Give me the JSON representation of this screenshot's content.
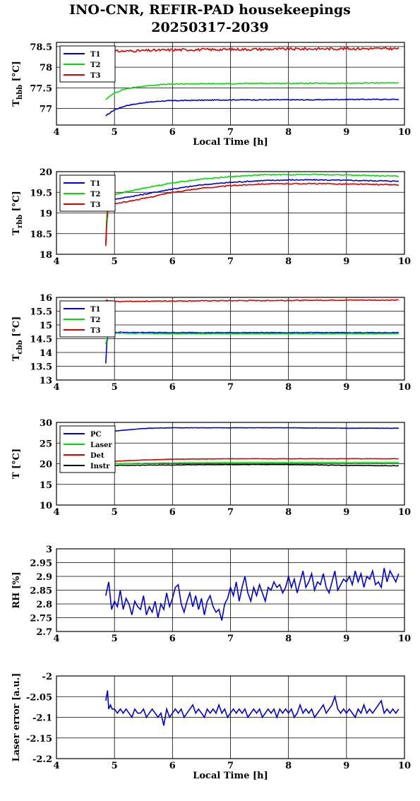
{
  "title": "INO-CNR, REFIR-PAD housekeepings",
  "subtitle": "20250317-2039",
  "chart_data": [
    {
      "type": "line",
      "title": "",
      "xlabel": "Local Time [h]",
      "ylabel": "T",
      "ylabel_sub": "hbb",
      "ylabel_unit": " [°C]",
      "xlim": [
        4,
        10
      ],
      "ylim": [
        76.6,
        78.6
      ],
      "xticks": [
        "4",
        "5",
        "6",
        "7",
        "8",
        "9",
        "10"
      ],
      "yticks": [
        "77",
        "77.5",
        "78",
        "78.5"
      ],
      "yticks_values": [
        77,
        77.5,
        78,
        78.5
      ],
      "grid": true,
      "legend": "top-left",
      "series": [
        {
          "name": "T1",
          "color": "#0000dd",
          "noise": 0.01,
          "x": [
            4.85,
            5.0,
            5.2,
            5.5,
            5.8,
            6.0,
            6.5,
            7.0,
            7.5,
            8.0,
            8.5,
            9.0,
            9.5,
            9.9
          ],
          "values": [
            76.82,
            76.97,
            77.07,
            77.14,
            77.18,
            77.19,
            77.2,
            77.21,
            77.21,
            77.21,
            77.21,
            77.22,
            77.22,
            77.22
          ]
        },
        {
          "name": "T2",
          "color": "#00dd00",
          "noise": 0.01,
          "x": [
            4.85,
            5.0,
            5.2,
            5.5,
            5.8,
            6.0,
            6.5,
            7.0,
            7.5,
            8.0,
            8.5,
            9.0,
            9.5,
            9.9
          ],
          "values": [
            77.22,
            77.38,
            77.48,
            77.54,
            77.58,
            77.59,
            77.6,
            77.6,
            77.61,
            77.61,
            77.61,
            77.61,
            77.62,
            77.62
          ]
        },
        {
          "name": "T3",
          "color": "#dd0000",
          "noise": 0.03,
          "x": [
            4.85,
            4.9,
            5.5,
            6.0,
            7.0,
            8.0,
            9.0,
            9.9
          ],
          "values": [
            78.2,
            78.38,
            78.4,
            78.42,
            78.43,
            78.44,
            78.45,
            78.45
          ]
        }
      ]
    },
    {
      "type": "line",
      "title": "",
      "xlabel": "",
      "ylabel": "T",
      "ylabel_sub": "rbb",
      "ylabel_unit": " [°C]",
      "xlim": [
        4,
        10
      ],
      "ylim": [
        18,
        20
      ],
      "xticks": [
        "4",
        "5",
        "6",
        "7",
        "8",
        "9",
        "10"
      ],
      "yticks": [
        "18",
        "18.5",
        "19",
        "19.5",
        "20"
      ],
      "yticks_values": [
        18,
        18.5,
        19,
        19.5,
        20
      ],
      "grid": true,
      "legend": "top-left",
      "series": [
        {
          "name": "T1",
          "color": "#0000dd",
          "noise": 0.012,
          "x": [
            4.85,
            4.88,
            4.9,
            5.0,
            5.5,
            6.0,
            6.5,
            7.0,
            7.5,
            8.0,
            8.5,
            9.0,
            9.5,
            9.9
          ],
          "values": [
            18.25,
            19.2,
            19.3,
            19.33,
            19.45,
            19.58,
            19.68,
            19.74,
            19.78,
            19.8,
            19.8,
            19.79,
            19.78,
            19.77
          ]
        },
        {
          "name": "T2",
          "color": "#00dd00",
          "noise": 0.012,
          "x": [
            4.85,
            4.88,
            4.9,
            5.0,
            5.5,
            6.0,
            6.5,
            7.0,
            7.5,
            8.0,
            8.5,
            9.0,
            9.5,
            9.9
          ],
          "values": [
            18.3,
            19.35,
            19.42,
            19.45,
            19.6,
            19.73,
            19.82,
            19.88,
            19.92,
            19.93,
            19.93,
            19.92,
            19.9,
            19.89
          ]
        },
        {
          "name": "T3",
          "color": "#dd0000",
          "noise": 0.012,
          "x": [
            4.85,
            4.88,
            4.9,
            5.0,
            5.5,
            6.0,
            6.5,
            7.0,
            7.5,
            8.0,
            8.5,
            9.0,
            9.5,
            9.9
          ],
          "values": [
            18.2,
            19.1,
            19.18,
            19.22,
            19.35,
            19.5,
            19.6,
            19.66,
            19.7,
            19.71,
            19.71,
            19.7,
            19.69,
            19.68
          ]
        }
      ]
    },
    {
      "type": "line",
      "title": "",
      "xlabel": "",
      "ylabel": "T",
      "ylabel_sub": "cbb",
      "ylabel_unit": " [°C]",
      "xlim": [
        4,
        10
      ],
      "ylim": [
        13,
        16
      ],
      "xticks": [
        "4",
        "5",
        "6",
        "7",
        "8",
        "9",
        "10"
      ],
      "yticks": [
        "13",
        "13.5",
        "14",
        "14.5",
        "15",
        "15.5",
        "16"
      ],
      "yticks_values": [
        13,
        13.5,
        14,
        14.5,
        15,
        15.5,
        16
      ],
      "grid": true,
      "legend": "top-left",
      "series": [
        {
          "name": "T1",
          "color": "#0000dd",
          "noise": 0.012,
          "x": [
            4.85,
            4.87,
            4.9,
            5.0,
            6.0,
            7.0,
            8.0,
            9.0,
            9.9
          ],
          "values": [
            13.6,
            14.4,
            14.75,
            14.73,
            14.72,
            14.72,
            14.72,
            14.72,
            14.72
          ]
        },
        {
          "name": "T2",
          "color": "#00dd00",
          "noise": 0.012,
          "x": [
            4.85,
            4.87,
            4.9,
            5.0,
            6.0,
            7.0,
            8.0,
            9.0,
            9.9
          ],
          "values": [
            14.3,
            14.5,
            14.76,
            14.7,
            14.68,
            14.68,
            14.68,
            14.68,
            14.68
          ]
        },
        {
          "name": "T3",
          "color": "#dd0000",
          "noise": 0.015,
          "x": [
            4.85,
            4.9,
            5.0,
            6.0,
            7.0,
            8.0,
            9.0,
            9.9
          ],
          "values": [
            15.9,
            15.87,
            15.85,
            15.87,
            15.88,
            15.89,
            15.9,
            15.9
          ]
        }
      ]
    },
    {
      "type": "line",
      "title": "",
      "xlabel": "",
      "ylabel": "T [°C]",
      "ylabel_sub": "",
      "ylabel_unit": "",
      "xlim": [
        4,
        10
      ],
      "ylim": [
        10,
        30
      ],
      "xticks": [
        "4",
        "5",
        "6",
        "7",
        "8",
        "9",
        "10"
      ],
      "yticks": [
        "10",
        "15",
        "20",
        "25",
        "30"
      ],
      "yticks_values": [
        10,
        15,
        20,
        25,
        30
      ],
      "grid": true,
      "legend": "top-left",
      "series": [
        {
          "name": "PC",
          "color": "#0000dd",
          "noise": 0.03,
          "x": [
            4.85,
            5.0,
            5.3,
            5.6,
            6.0,
            7.0,
            8.0,
            9.0,
            9.9
          ],
          "values": [
            27.5,
            27.9,
            28.3,
            28.6,
            28.7,
            28.7,
            28.7,
            28.6,
            28.6
          ]
        },
        {
          "name": "Laser",
          "color": "#00dd00",
          "noise": 0.05,
          "x": [
            4.85,
            5.0,
            6.0,
            7.0,
            8.0,
            9.0,
            9.9
          ],
          "values": [
            20.2,
            20.0,
            20.2,
            20.3,
            20.3,
            20.3,
            20.3
          ]
        },
        {
          "name": "Det",
          "color": "#dd0000",
          "noise": 0.04,
          "x": [
            4.85,
            5.0,
            5.5,
            6.0,
            7.0,
            8.0,
            9.0,
            9.9
          ],
          "values": [
            20.4,
            20.6,
            20.9,
            21.1,
            21.2,
            21.2,
            21.2,
            21.2
          ]
        },
        {
          "name": "Instr",
          "color": "#000000",
          "noise": 0.05,
          "x": [
            4.85,
            5.0,
            6.0,
            7.0,
            8.0,
            9.0,
            9.9
          ],
          "values": [
            19.5,
            19.6,
            19.7,
            19.8,
            19.8,
            19.6,
            19.5
          ]
        }
      ]
    },
    {
      "type": "line",
      "title": "",
      "xlabel": "",
      "ylabel": "RH [%]",
      "ylabel_sub": "",
      "ylabel_unit": "",
      "xlim": [
        4,
        10
      ],
      "ylim": [
        2.7,
        3
      ],
      "xticks": [
        "4",
        "5",
        "6",
        "7",
        "8",
        "9",
        "10"
      ],
      "yticks": [
        "2.7",
        "2.75",
        "2.8",
        "2.85",
        "2.9",
        "2.95",
        "3"
      ],
      "yticks_values": [
        2.7,
        2.75,
        2.8,
        2.85,
        2.9,
        2.95,
        3
      ],
      "grid": true,
      "legend": "none",
      "series": [
        {
          "color": "#0000dd",
          "x": [
            4.85,
            4.9,
            4.95,
            5.0,
            5.05,
            5.1,
            5.15,
            5.2,
            5.25,
            5.3,
            5.35,
            5.4,
            5.45,
            5.5,
            5.55,
            5.6,
            5.65,
            5.7,
            5.75,
            5.8,
            5.85,
            5.9,
            5.95,
            6.0,
            6.05,
            6.1,
            6.15,
            6.2,
            6.25,
            6.3,
            6.35,
            6.4,
            6.45,
            6.5,
            6.55,
            6.6,
            6.65,
            6.7,
            6.75,
            6.8,
            6.85,
            6.9,
            6.95,
            7.0,
            7.05,
            7.1,
            7.15,
            7.2,
            7.25,
            7.3,
            7.35,
            7.4,
            7.45,
            7.5,
            7.55,
            7.6,
            7.65,
            7.7,
            7.75,
            7.8,
            7.85,
            7.9,
            7.95,
            8.0,
            8.05,
            8.1,
            8.15,
            8.2,
            8.25,
            8.3,
            8.35,
            8.4,
            8.45,
            8.5,
            8.55,
            8.6,
            8.65,
            8.7,
            8.75,
            8.8,
            8.85,
            8.9,
            8.95,
            9.0,
            9.05,
            9.1,
            9.15,
            9.2,
            9.25,
            9.3,
            9.35,
            9.4,
            9.45,
            9.5,
            9.55,
            9.6,
            9.65,
            9.7,
            9.75,
            9.8,
            9.85,
            9.9
          ],
          "values": [
            2.83,
            2.88,
            2.78,
            2.81,
            2.79,
            2.85,
            2.78,
            2.82,
            2.8,
            2.76,
            2.81,
            2.79,
            2.78,
            2.83,
            2.76,
            2.79,
            2.77,
            2.81,
            2.75,
            2.8,
            2.78,
            2.84,
            2.79,
            2.82,
            2.86,
            2.87,
            2.8,
            2.77,
            2.81,
            2.84,
            2.79,
            2.83,
            2.78,
            2.82,
            2.76,
            2.81,
            2.83,
            2.79,
            2.77,
            2.78,
            2.74,
            2.8,
            2.82,
            2.86,
            2.83,
            2.88,
            2.81,
            2.86,
            2.9,
            2.84,
            2.81,
            2.86,
            2.83,
            2.87,
            2.84,
            2.81,
            2.86,
            2.85,
            2.88,
            2.86,
            2.87,
            2.84,
            2.86,
            2.9,
            2.86,
            2.89,
            2.84,
            2.88,
            2.92,
            2.86,
            2.88,
            2.91,
            2.85,
            2.88,
            2.87,
            2.91,
            2.86,
            2.84,
            2.88,
            2.92,
            2.85,
            2.87,
            2.89,
            2.88,
            2.9,
            2.87,
            2.92,
            2.88,
            2.91,
            2.86,
            2.9,
            2.89,
            2.92,
            2.87,
            2.88,
            2.86,
            2.93,
            2.88,
            2.92,
            2.9,
            2.88,
            2.91
          ]
        }
      ]
    },
    {
      "type": "line",
      "title": "",
      "xlabel": "Local Time [h]",
      "ylabel": "Laser error [a.u.]",
      "ylabel_sub": "",
      "ylabel_unit": "",
      "xlim": [
        4,
        10
      ],
      "ylim": [
        -2.2,
        -2.0
      ],
      "xticks": [
        "4",
        "5",
        "6",
        "7",
        "8",
        "9",
        "10"
      ],
      "yticks": [
        "-2.2",
        "-2.15",
        "-2.1",
        "-2.05",
        "-2"
      ],
      "yticks_values": [
        -2.2,
        -2.15,
        -2.1,
        -2.05,
        -2.0
      ],
      "grid": true,
      "legend": "none",
      "series": [
        {
          "color": "#0000dd",
          "x": [
            4.85,
            4.88,
            4.9,
            4.93,
            4.96,
            5.0,
            5.05,
            5.1,
            5.15,
            5.2,
            5.25,
            5.3,
            5.35,
            5.4,
            5.45,
            5.5,
            5.55,
            5.6,
            5.65,
            5.7,
            5.75,
            5.8,
            5.85,
            5.9,
            5.95,
            6.0,
            6.05,
            6.1,
            6.15,
            6.2,
            6.25,
            6.3,
            6.35,
            6.4,
            6.45,
            6.5,
            6.55,
            6.6,
            6.65,
            6.7,
            6.75,
            6.8,
            6.85,
            6.9,
            6.95,
            7.0,
            7.05,
            7.1,
            7.15,
            7.2,
            7.25,
            7.3,
            7.35,
            7.4,
            7.45,
            7.5,
            7.55,
            7.6,
            7.65,
            7.7,
            7.75,
            7.8,
            7.85,
            7.9,
            7.95,
            8.0,
            8.05,
            8.1,
            8.15,
            8.2,
            8.25,
            8.3,
            8.35,
            8.4,
            8.45,
            8.5,
            8.55,
            8.6,
            8.65,
            8.7,
            8.75,
            8.8,
            8.85,
            8.9,
            8.95,
            9.0,
            9.05,
            9.1,
            9.15,
            9.2,
            9.25,
            9.3,
            9.35,
            9.4,
            9.45,
            9.5,
            9.55,
            9.6,
            9.65,
            9.7,
            9.75,
            9.8,
            9.85,
            9.9
          ],
          "values": [
            -2.06,
            -2.035,
            -2.08,
            -2.07,
            -2.08,
            -2.08,
            -2.09,
            -2.08,
            -2.09,
            -2.08,
            -2.09,
            -2.1,
            -2.08,
            -2.09,
            -2.09,
            -2.08,
            -2.1,
            -2.09,
            -2.08,
            -2.09,
            -2.1,
            -2.09,
            -2.12,
            -2.08,
            -2.1,
            -2.09,
            -2.08,
            -2.09,
            -2.08,
            -2.1,
            -2.09,
            -2.08,
            -2.07,
            -2.09,
            -2.08,
            -2.09,
            -2.1,
            -2.08,
            -2.09,
            -2.08,
            -2.09,
            -2.07,
            -2.09,
            -2.08,
            -2.1,
            -2.09,
            -2.08,
            -2.09,
            -2.08,
            -2.09,
            -2.08,
            -2.1,
            -2.09,
            -2.08,
            -2.09,
            -2.08,
            -2.1,
            -2.09,
            -2.08,
            -2.09,
            -2.08,
            -2.1,
            -2.08,
            -2.09,
            -2.08,
            -2.09,
            -2.08,
            -2.1,
            -2.09,
            -2.07,
            -2.09,
            -2.08,
            -2.09,
            -2.08,
            -2.1,
            -2.09,
            -2.08,
            -2.07,
            -2.09,
            -2.08,
            -2.07,
            -2.05,
            -2.08,
            -2.09,
            -2.08,
            -2.09,
            -2.08,
            -2.09,
            -2.1,
            -2.08,
            -2.09,
            -2.07,
            -2.09,
            -2.08,
            -2.09,
            -2.08,
            -2.07,
            -2.06,
            -2.09,
            -2.08,
            -2.09,
            -2.08,
            -2.09,
            -2.08
          ]
        }
      ]
    }
  ]
}
